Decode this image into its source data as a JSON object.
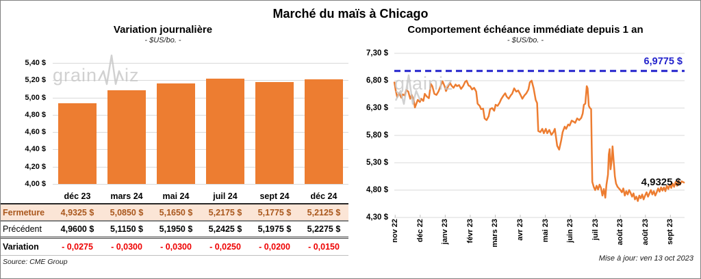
{
  "page": {
    "title": "Marché du maïs à Chicago"
  },
  "watermark": {
    "prefix": "grain",
    "suffix": "iz"
  },
  "colors": {
    "accent_orange": "#ED7D31",
    "reference_blue": "#2222CC",
    "negative_red": "#EE0000",
    "fermeture_bg": "#FBE5D6",
    "fermeture_text": "#A9571C",
    "gridline": "#D9D9D9"
  },
  "left_chart": {
    "title": "Variation journalière",
    "subtitle": "- $US/bo. -",
    "y_ticks": [
      "5,40 $",
      "5,20 $",
      "5,00 $",
      "4,80 $",
      "4,60 $",
      "4,40 $",
      "4,20 $",
      "4,00 $"
    ],
    "categories": [
      "déc 23",
      "mars 24",
      "mai 24",
      "juil 24",
      "sept 24",
      "déc 24"
    ]
  },
  "table": {
    "rows": [
      {
        "style": "fermeture",
        "label": "Fermeture",
        "cells": [
          "4,9325 $",
          "5,0850 $",
          "5,1650 $",
          "5,2175 $",
          "5,1775 $",
          "5,2125 $"
        ]
      },
      {
        "style": "precedent",
        "label": "Précédent",
        "cells": [
          "4,9600 $",
          "5,1150 $",
          "5,1950 $",
          "5,2425 $",
          "5,1975 $",
          "5,2275 $"
        ]
      },
      {
        "style": "variation",
        "label": "Variation",
        "cells": [
          "- 0,0275",
          "- 0,0300",
          "- 0,0300",
          "- 0,0250",
          "- 0,0200",
          "- 0,0150"
        ]
      }
    ],
    "source": "Source: CME Group"
  },
  "right_chart": {
    "title": "Comportement échéance immédiate depuis 1 an",
    "subtitle": "- $US/bo. -",
    "y_ticks": [
      "7,30 $",
      "6,80 $",
      "6,30 $",
      "5,80 $",
      "5,30 $",
      "4,80 $",
      "4,30 $"
    ],
    "x_ticks": [
      "nov 22",
      "déc 22",
      "janv 23",
      "févr 23",
      "mars 23",
      "avr 23",
      "mai 23",
      "juin 23",
      "juil 23",
      "août 23",
      "août 23",
      "sept 23"
    ],
    "max_label": "6,9775 $",
    "last_label": "4,9325 $",
    "update_note": "Mise à jour: ven 13 oct 2023"
  },
  "chart_data": [
    {
      "type": "bar",
      "title": "Variation journalière",
      "unit": "$US/bo.",
      "categories": [
        "déc 23",
        "mars 24",
        "mai 24",
        "juil 24",
        "sept 24",
        "déc 24"
      ],
      "values": [
        4.9325,
        5.085,
        5.165,
        5.2175,
        5.1775,
        5.2125
      ],
      "previous_values": [
        4.96,
        5.115,
        5.195,
        5.2425,
        5.1975,
        5.2275
      ],
      "variations": [
        -0.0275,
        -0.03,
        -0.03,
        -0.025,
        -0.02,
        -0.015
      ],
      "ylim": [
        4.0,
        5.4
      ],
      "ytick_step": 0.2,
      "grid": true
    },
    {
      "type": "line",
      "title": "Comportement échéance immédiate depuis 1 an",
      "unit": "$US/bo.",
      "x_categories": [
        "nov 22",
        "déc 22",
        "janv 23",
        "févr 23",
        "mars 23",
        "avr 23",
        "mai 23",
        "juin 23",
        "juil 23",
        "août 23",
        "août 23",
        "sept 23"
      ],
      "ylim": [
        4.3,
        7.3
      ],
      "ytick_step": 0.5,
      "grid": true,
      "reference_line": {
        "value": 6.9775,
        "label": "6,9775 $",
        "style": "dashed"
      },
      "last_value": 4.9325,
      "points": [
        [
          0.0,
          6.78
        ],
        [
          0.005,
          6.62
        ],
        [
          0.01,
          6.5
        ],
        [
          0.017,
          6.57
        ],
        [
          0.024,
          6.49
        ],
        [
          0.029,
          6.55
        ],
        [
          0.036,
          6.53
        ],
        [
          0.041,
          6.63
        ],
        [
          0.048,
          6.6
        ],
        [
          0.055,
          6.47
        ],
        [
          0.06,
          6.54
        ],
        [
          0.067,
          6.44
        ],
        [
          0.071,
          6.31
        ],
        [
          0.076,
          6.38
        ],
        [
          0.081,
          6.45
        ],
        [
          0.088,
          6.41
        ],
        [
          0.093,
          6.47
        ],
        [
          0.1,
          6.43
        ],
        [
          0.105,
          6.56
        ],
        [
          0.112,
          6.51
        ],
        [
          0.119,
          6.48
        ],
        [
          0.126,
          6.74
        ],
        [
          0.131,
          6.7
        ],
        [
          0.138,
          6.56
        ],
        [
          0.145,
          6.54
        ],
        [
          0.152,
          6.6
        ],
        [
          0.157,
          6.67
        ],
        [
          0.166,
          6.79
        ],
        [
          0.173,
          6.7
        ],
        [
          0.178,
          6.61
        ],
        [
          0.185,
          6.69
        ],
        [
          0.192,
          6.76
        ],
        [
          0.197,
          6.71
        ],
        [
          0.204,
          6.67
        ],
        [
          0.211,
          6.73
        ],
        [
          0.216,
          6.7
        ],
        [
          0.223,
          6.72
        ],
        [
          0.23,
          6.65
        ],
        [
          0.237,
          6.7
        ],
        [
          0.244,
          6.78
        ],
        [
          0.249,
          6.8
        ],
        [
          0.256,
          6.71
        ],
        [
          0.261,
          6.7
        ],
        [
          0.268,
          6.64
        ],
        [
          0.275,
          6.67
        ],
        [
          0.282,
          6.6
        ],
        [
          0.287,
          6.38
        ],
        [
          0.294,
          6.34
        ],
        [
          0.299,
          6.28
        ],
        [
          0.306,
          6.29
        ],
        [
          0.311,
          6.11
        ],
        [
          0.318,
          6.08
        ],
        [
          0.325,
          6.15
        ],
        [
          0.33,
          6.28
        ],
        [
          0.337,
          6.3
        ],
        [
          0.344,
          6.25
        ],
        [
          0.349,
          6.36
        ],
        [
          0.356,
          6.34
        ],
        [
          0.363,
          6.4
        ],
        [
          0.368,
          6.46
        ],
        [
          0.375,
          6.52
        ],
        [
          0.382,
          6.57
        ],
        [
          0.387,
          6.51
        ],
        [
          0.394,
          6.47
        ],
        [
          0.401,
          6.53
        ],
        [
          0.406,
          6.56
        ],
        [
          0.413,
          6.66
        ],
        [
          0.42,
          6.6
        ],
        [
          0.427,
          6.62
        ],
        [
          0.434,
          6.55
        ],
        [
          0.441,
          6.47
        ],
        [
          0.448,
          6.53
        ],
        [
          0.455,
          6.57
        ],
        [
          0.462,
          6.64
        ],
        [
          0.467,
          6.77
        ],
        [
          0.473,
          6.8
        ],
        [
          0.48,
          6.66
        ],
        [
          0.487,
          6.45
        ],
        [
          0.492,
          6.39
        ],
        [
          0.496,
          5.88
        ],
        [
          0.503,
          5.86
        ],
        [
          0.51,
          5.92
        ],
        [
          0.515,
          5.84
        ],
        [
          0.522,
          5.92
        ],
        [
          0.527,
          5.84
        ],
        [
          0.534,
          5.9
        ],
        [
          0.541,
          5.81
        ],
        [
          0.548,
          5.86
        ],
        [
          0.553,
          5.92
        ],
        [
          0.561,
          5.61
        ],
        [
          0.568,
          5.54
        ],
        [
          0.575,
          5.71
        ],
        [
          0.58,
          5.86
        ],
        [
          0.587,
          5.96
        ],
        [
          0.592,
          5.92
        ],
        [
          0.599,
          6.0
        ],
        [
          0.604,
          5.98
        ],
        [
          0.611,
          6.07
        ],
        [
          0.618,
          6.05
        ],
        [
          0.623,
          6.03
        ],
        [
          0.63,
          6.11
        ],
        [
          0.637,
          6.08
        ],
        [
          0.644,
          6.12
        ],
        [
          0.649,
          6.2
        ],
        [
          0.653,
          6.36
        ],
        [
          0.658,
          6.38
        ],
        [
          0.663,
          6.7
        ],
        [
          0.666,
          6.66
        ],
        [
          0.67,
          6.34
        ],
        [
          0.674,
          6.3
        ],
        [
          0.678,
          6.28
        ],
        [
          0.682,
          4.95
        ],
        [
          0.687,
          4.86
        ],
        [
          0.692,
          4.8
        ],
        [
          0.697,
          4.88
        ],
        [
          0.702,
          4.81
        ],
        [
          0.707,
          4.9
        ],
        [
          0.712,
          4.84
        ],
        [
          0.717,
          4.7
        ],
        [
          0.722,
          4.82
        ],
        [
          0.727,
          4.66
        ],
        [
          0.731,
          4.9
        ],
        [
          0.736,
          5.08
        ],
        [
          0.739,
          5.45
        ],
        [
          0.742,
          5.55
        ],
        [
          0.745,
          5.18
        ],
        [
          0.749,
          5.35
        ],
        [
          0.752,
          5.6
        ],
        [
          0.756,
          5.32
        ],
        [
          0.76,
          5.05
        ],
        [
          0.764,
          4.92
        ],
        [
          0.769,
          4.86
        ],
        [
          0.774,
          4.83
        ],
        [
          0.779,
          4.8
        ],
        [
          0.784,
          4.76
        ],
        [
          0.789,
          4.83
        ],
        [
          0.794,
          4.7
        ],
        [
          0.799,
          4.78
        ],
        [
          0.804,
          4.72
        ],
        [
          0.809,
          4.8
        ],
        [
          0.814,
          4.75
        ],
        [
          0.819,
          4.68
        ],
        [
          0.824,
          4.74
        ],
        [
          0.829,
          4.63
        ],
        [
          0.834,
          4.68
        ],
        [
          0.839,
          4.6
        ],
        [
          0.844,
          4.7
        ],
        [
          0.849,
          4.65
        ],
        [
          0.854,
          4.72
        ],
        [
          0.859,
          4.63
        ],
        [
          0.864,
          4.7
        ],
        [
          0.869,
          4.76
        ],
        [
          0.874,
          4.68
        ],
        [
          0.879,
          4.74
        ],
        [
          0.884,
          4.8
        ],
        [
          0.889,
          4.72
        ],
        [
          0.894,
          4.78
        ],
        [
          0.899,
          4.7
        ],
        [
          0.904,
          4.76
        ],
        [
          0.909,
          4.83
        ],
        [
          0.914,
          4.77
        ],
        [
          0.919,
          4.85
        ],
        [
          0.924,
          4.79
        ],
        [
          0.929,
          4.85
        ],
        [
          0.934,
          4.78
        ],
        [
          0.939,
          4.88
        ],
        [
          0.944,
          4.82
        ],
        [
          0.949,
          4.9
        ],
        [
          0.954,
          4.84
        ],
        [
          0.959,
          4.92
        ],
        [
          0.964,
          4.86
        ],
        [
          0.969,
          4.95
        ],
        [
          0.974,
          4.88
        ],
        [
          0.979,
          4.97
        ],
        [
          0.984,
          4.9
        ],
        [
          0.99,
          4.96
        ],
        [
          1.0,
          4.9325
        ]
      ]
    }
  ]
}
